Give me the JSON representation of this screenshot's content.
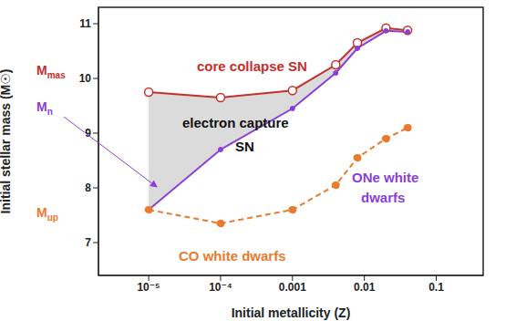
{
  "chart_data": {
    "type": "line",
    "x_label": "Initial metallicity (Z)",
    "y_label": "Initial stellar mass (M☉)",
    "log": "x",
    "x": [
      1e-05,
      0.0001,
      0.001,
      0.004,
      0.008,
      0.02,
      0.04
    ],
    "xlim": [
      2e-06,
      0.45
    ],
    "xticks": [
      {
        "value": 1e-05,
        "label": "10⁻⁵"
      },
      {
        "value": 0.0001,
        "label": "10⁻⁴"
      },
      0.001,
      0.01,
      0.1
    ],
    "ylim": [
      6.4,
      11.3
    ],
    "yticks": [
      7,
      8,
      9,
      10,
      11
    ],
    "series": [
      {
        "name": "Mmas",
        "color": "#c4302b",
        "marker": "open_circle",
        "line_style": "solid",
        "values": [
          9.75,
          9.65,
          9.78,
          10.25,
          10.65,
          10.92,
          10.88
        ]
      },
      {
        "name": "Mn",
        "color": "#8a3fd6",
        "marker": "dot",
        "line_style": "solid",
        "values": [
          7.6,
          8.7,
          9.45,
          10.1,
          10.55,
          10.87,
          10.85
        ]
      },
      {
        "name": "Mup",
        "color": "#e87b2e",
        "marker": "circle",
        "line_style": "dashed",
        "values": [
          7.6,
          7.35,
          7.6,
          8.05,
          8.55,
          8.9,
          9.1
        ]
      }
    ],
    "annotations": [
      "core collapse SN",
      "electron capture",
      "SN",
      "ONe white",
      "dwarfs",
      "CO white dwarfs"
    ]
  }
}
